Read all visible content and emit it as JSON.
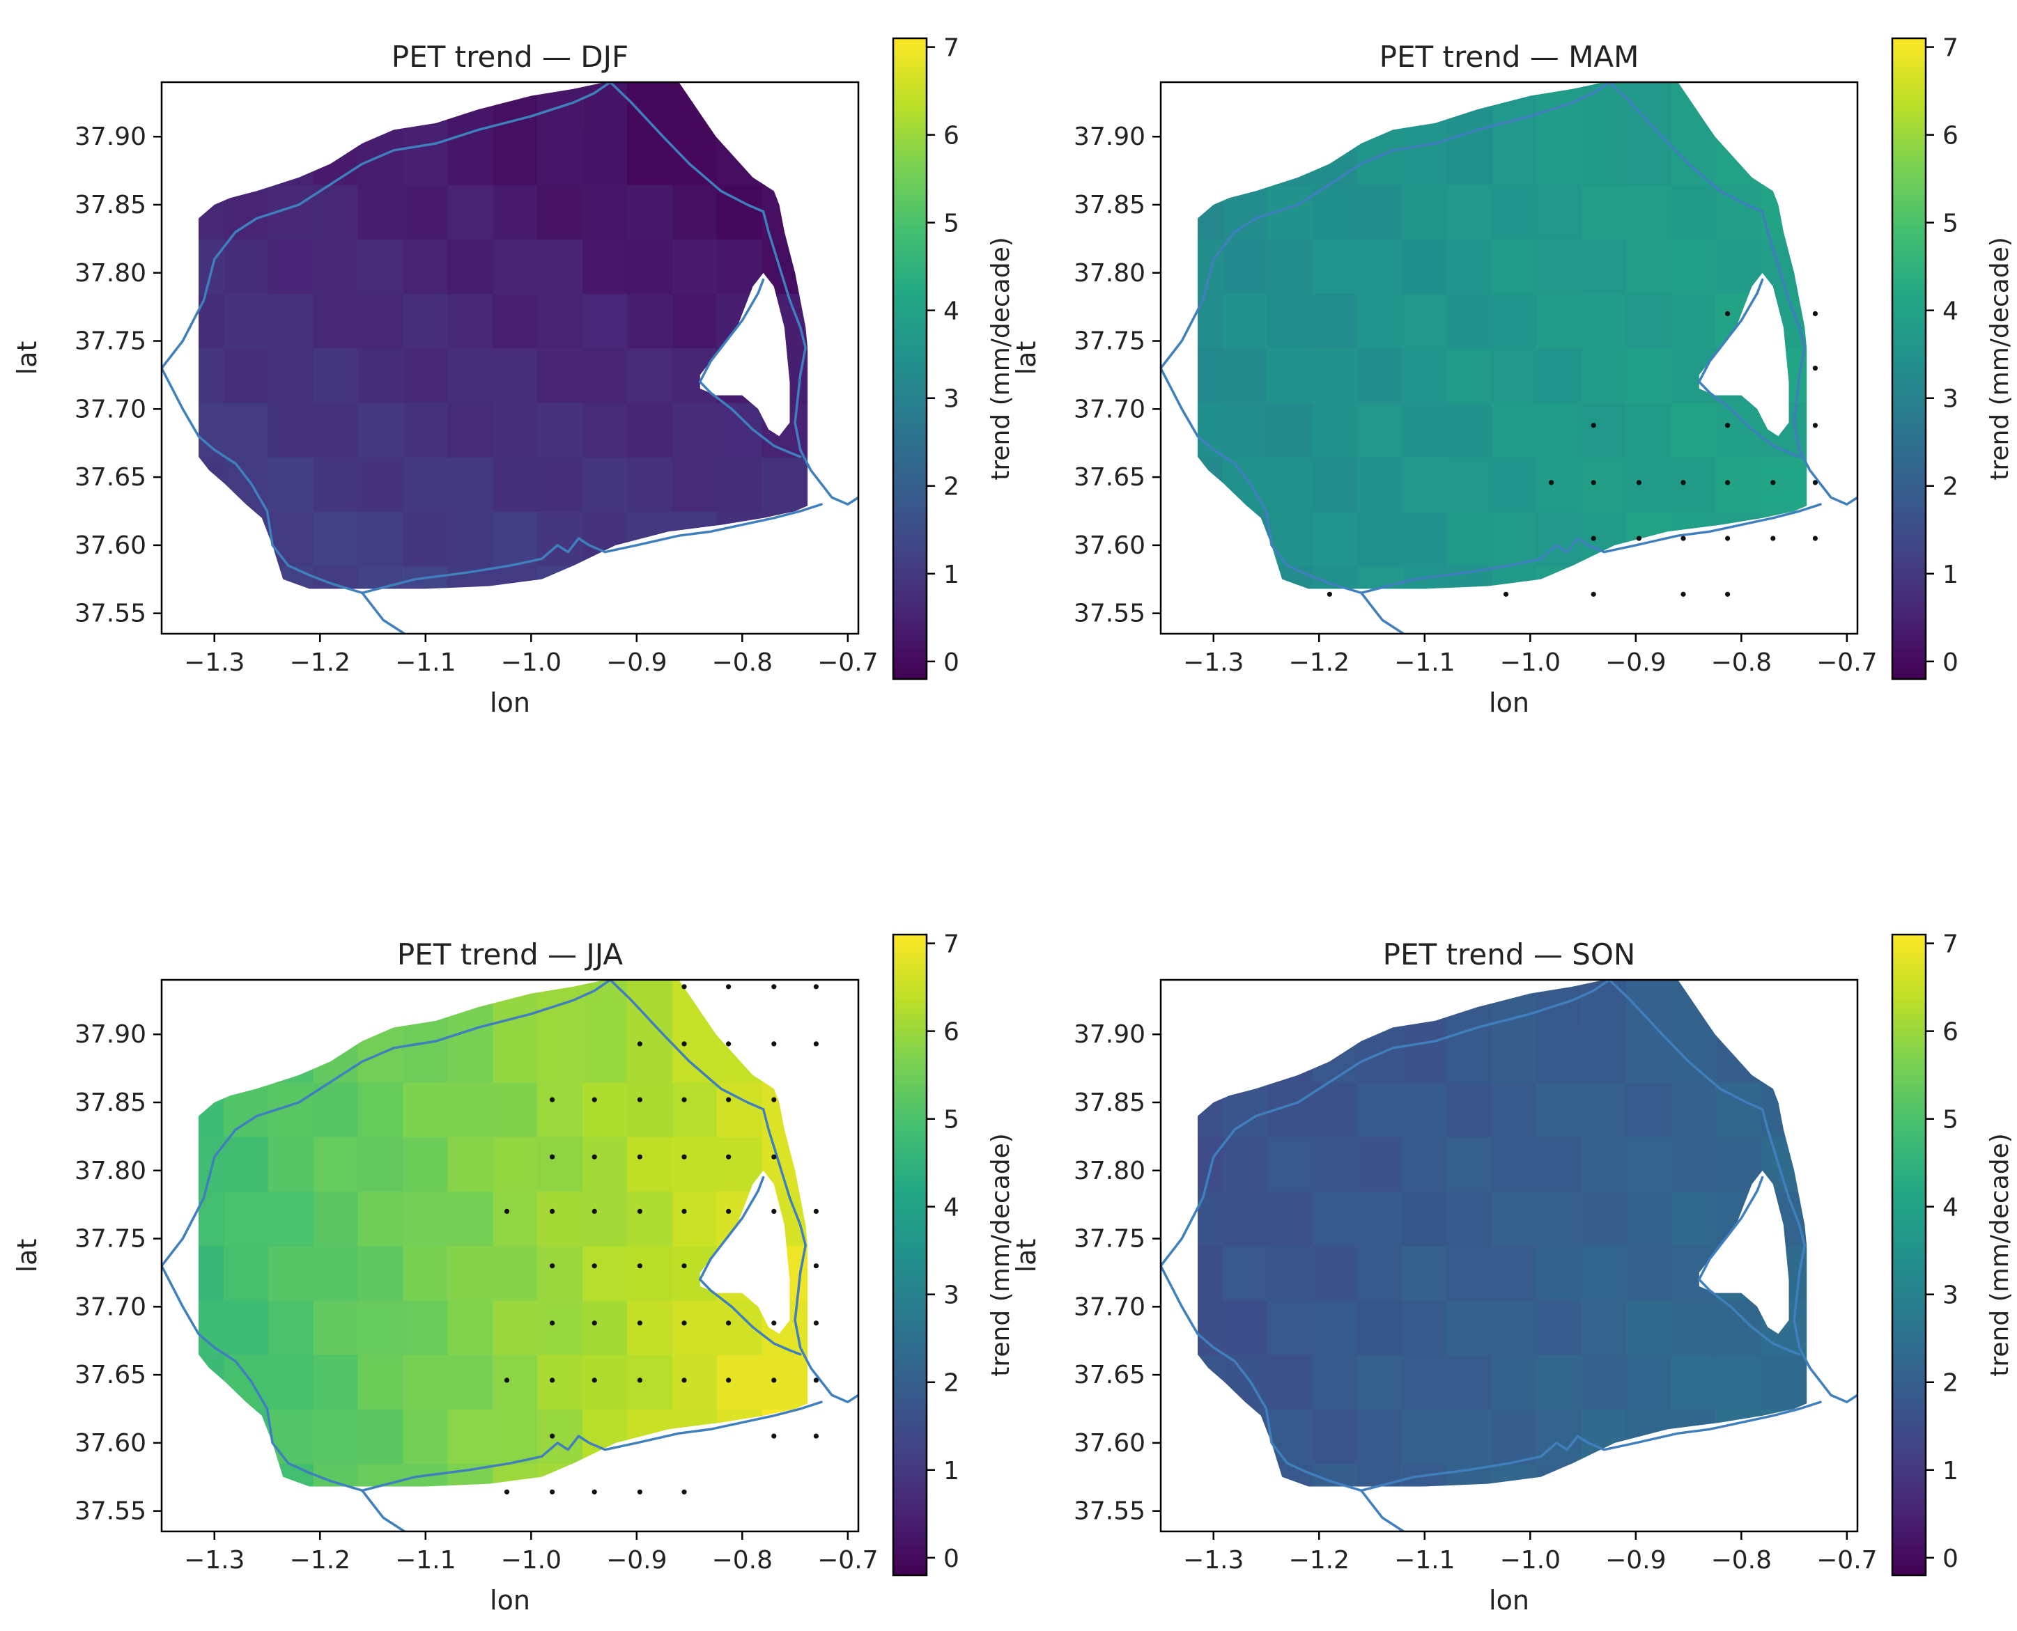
{
  "colorbar": {
    "label": "trend (mm/decade)",
    "min": -0.2,
    "max": 7.1,
    "ticks": [
      0,
      1,
      2,
      3,
      4,
      5,
      6,
      7
    ],
    "colormap": "viridis",
    "stops": [
      "#440154",
      "#482475",
      "#414487",
      "#355f8d",
      "#2a788e",
      "#21918c",
      "#22a884",
      "#44bf70",
      "#7ad151",
      "#bddf26",
      "#fde725"
    ]
  },
  "chart_data": [
    {
      "type": "heatmap",
      "title": "PET trend — DJF",
      "xlabel": "lon",
      "ylabel": "lat",
      "xlim": [
        -1.35,
        -0.69
      ],
      "ylim": [
        37.535,
        37.94
      ],
      "xticks": [
        "−1.3",
        "−1.2",
        "−1.1",
        "−1.0",
        "−0.9",
        "−0.8",
        "−0.7"
      ],
      "yticks": [
        "37.55",
        "37.60",
        "37.65",
        "37.70",
        "37.75",
        "37.80",
        "37.85",
        "37.90"
      ],
      "x": [
        -1.313,
        -1.27,
        -1.228,
        -1.185,
        -1.143,
        -1.1,
        -1.058,
        -1.015,
        -0.973,
        -0.93,
        -0.888,
        -0.845,
        -0.803,
        -0.76
      ],
      "y": [
        37.585,
        37.625,
        37.665,
        37.705,
        37.745,
        37.785,
        37.825,
        37.865,
        37.905
      ],
      "grid_trend": {
        "corner_sw": 1.25,
        "corner_se": 1.0,
        "corner_nw": 0.6,
        "corner_ne": -0.1
      },
      "stippled_points": []
    },
    {
      "type": "heatmap",
      "title": "PET trend — MAM",
      "xlabel": "lon",
      "ylabel": "lat",
      "xlim": [
        -1.35,
        -0.69
      ],
      "ylim": [
        37.535,
        37.94
      ],
      "xticks": [
        "−1.3",
        "−1.2",
        "−1.1",
        "−1.0",
        "−0.9",
        "−0.8",
        "−0.7"
      ],
      "yticks": [
        "37.55",
        "37.60",
        "37.65",
        "37.70",
        "37.75",
        "37.80",
        "37.85",
        "37.90"
      ],
      "x": [
        -1.313,
        -1.27,
        -1.228,
        -1.185,
        -1.143,
        -1.1,
        -1.058,
        -1.015,
        -0.973,
        -0.93,
        -0.888,
        -0.845,
        -0.803,
        -0.76
      ],
      "y": [
        37.585,
        37.625,
        37.665,
        37.705,
        37.745,
        37.785,
        37.825,
        37.865,
        37.905
      ],
      "grid_trend": {
        "corner_sw": 3.3,
        "corner_se": 4.0,
        "corner_nw": 3.3,
        "corner_ne": 3.9
      },
      "stippled_points": [
        [
          -0.813,
          37.77
        ],
        [
          -0.73,
          37.77
        ],
        [
          -0.73,
          37.73
        ],
        [
          -0.94,
          37.688
        ],
        [
          -0.813,
          37.688
        ],
        [
          -0.73,
          37.688
        ],
        [
          -0.98,
          37.646
        ],
        [
          -0.94,
          37.646
        ],
        [
          -0.897,
          37.646
        ],
        [
          -0.855,
          37.646
        ],
        [
          -0.813,
          37.646
        ],
        [
          -0.77,
          37.646
        ],
        [
          -0.73,
          37.646
        ],
        [
          -0.94,
          37.605
        ],
        [
          -0.897,
          37.605
        ],
        [
          -0.855,
          37.605
        ],
        [
          -0.813,
          37.605
        ],
        [
          -0.77,
          37.605
        ],
        [
          -0.73,
          37.605
        ],
        [
          -1.19,
          37.564
        ],
        [
          -1.023,
          37.564
        ],
        [
          -0.94,
          37.564
        ],
        [
          -0.855,
          37.564
        ],
        [
          -0.813,
          37.564
        ]
      ]
    },
    {
      "type": "heatmap",
      "title": "PET trend — JJA",
      "xlabel": "lon",
      "ylabel": "lat",
      "xlim": [
        -1.35,
        -0.69
      ],
      "ylim": [
        37.535,
        37.94
      ],
      "xticks": [
        "−1.3",
        "−1.2",
        "−1.1",
        "−1.0",
        "−0.9",
        "−0.8",
        "−0.7"
      ],
      "yticks": [
        "37.55",
        "37.60",
        "37.65",
        "37.70",
        "37.75",
        "37.80",
        "37.85",
        "37.90"
      ],
      "x": [
        -1.313,
        -1.27,
        -1.228,
        -1.185,
        -1.143,
        -1.1,
        -1.058,
        -1.015,
        -0.973,
        -0.93,
        -0.888,
        -0.845,
        -0.803,
        -0.76
      ],
      "y": [
        37.585,
        37.625,
        37.665,
        37.705,
        37.745,
        37.785,
        37.825,
        37.865,
        37.905
      ],
      "grid_trend": {
        "corner_sw": 4.6,
        "corner_se": 7.0,
        "corner_nw": 4.9,
        "corner_ne": 6.6
      },
      "stippled_points": [
        [
          -0.855,
          37.935
        ],
        [
          -0.813,
          37.935
        ],
        [
          -0.77,
          37.935
        ],
        [
          -0.73,
          37.935
        ],
        [
          -0.897,
          37.893
        ],
        [
          -0.855,
          37.893
        ],
        [
          -0.813,
          37.893
        ],
        [
          -0.77,
          37.893
        ],
        [
          -0.73,
          37.893
        ],
        [
          -0.98,
          37.852
        ],
        [
          -0.94,
          37.852
        ],
        [
          -0.897,
          37.852
        ],
        [
          -0.855,
          37.852
        ],
        [
          -0.813,
          37.852
        ],
        [
          -0.77,
          37.852
        ],
        [
          -0.98,
          37.81
        ],
        [
          -0.94,
          37.81
        ],
        [
          -0.897,
          37.81
        ],
        [
          -0.855,
          37.81
        ],
        [
          -0.813,
          37.81
        ],
        [
          -0.77,
          37.81
        ],
        [
          -1.023,
          37.77
        ],
        [
          -0.98,
          37.77
        ],
        [
          -0.94,
          37.77
        ],
        [
          -0.897,
          37.77
        ],
        [
          -0.855,
          37.77
        ],
        [
          -0.813,
          37.77
        ],
        [
          -0.77,
          37.77
        ],
        [
          -0.73,
          37.77
        ],
        [
          -0.98,
          37.73
        ],
        [
          -0.94,
          37.73
        ],
        [
          -0.897,
          37.73
        ],
        [
          -0.855,
          37.73
        ],
        [
          -0.73,
          37.73
        ],
        [
          -0.98,
          37.688
        ],
        [
          -0.94,
          37.688
        ],
        [
          -0.897,
          37.688
        ],
        [
          -0.855,
          37.688
        ],
        [
          -0.813,
          37.688
        ],
        [
          -0.77,
          37.688
        ],
        [
          -0.73,
          37.688
        ],
        [
          -1.023,
          37.646
        ],
        [
          -0.98,
          37.646
        ],
        [
          -0.94,
          37.646
        ],
        [
          -0.897,
          37.646
        ],
        [
          -0.855,
          37.646
        ],
        [
          -0.813,
          37.646
        ],
        [
          -0.77,
          37.646
        ],
        [
          -0.73,
          37.646
        ],
        [
          -0.98,
          37.605
        ],
        [
          -0.77,
          37.605
        ],
        [
          -0.73,
          37.605
        ],
        [
          -1.023,
          37.564
        ],
        [
          -0.98,
          37.564
        ],
        [
          -0.94,
          37.564
        ],
        [
          -0.897,
          37.564
        ],
        [
          -0.855,
          37.564
        ]
      ]
    },
    {
      "type": "heatmap",
      "title": "PET trend — SON",
      "xlabel": "lon",
      "ylabel": "lat",
      "xlim": [
        -1.35,
        -0.69
      ],
      "ylim": [
        37.535,
        37.94
      ],
      "xticks": [
        "−1.3",
        "−1.2",
        "−1.1",
        "−1.0",
        "−0.9",
        "−0.8",
        "−0.7"
      ],
      "yticks": [
        "37.55",
        "37.60",
        "37.65",
        "37.70",
        "37.75",
        "37.80",
        "37.85",
        "37.90"
      ],
      "x": [
        -1.313,
        -1.27,
        -1.228,
        -1.185,
        -1.143,
        -1.1,
        -1.058,
        -1.015,
        -0.973,
        -0.93,
        -0.888,
        -0.845,
        -0.803,
        -0.76
      ],
      "y": [
        37.585,
        37.625,
        37.665,
        37.705,
        37.745,
        37.785,
        37.825,
        37.865,
        37.905
      ],
      "grid_trend": {
        "corner_sw": 1.65,
        "corner_se": 2.5,
        "corner_nw": 1.55,
        "corner_ne": 2.1
      },
      "stippled_points": []
    }
  ]
}
